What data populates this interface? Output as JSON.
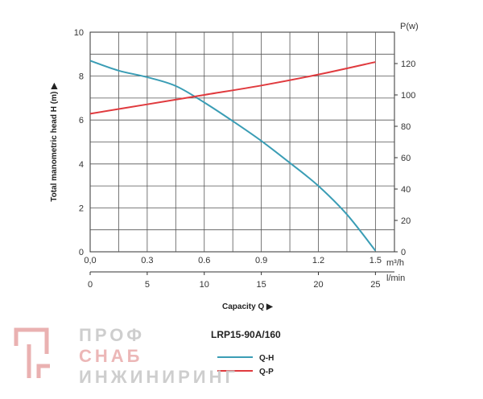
{
  "chart_data": {
    "type": "line",
    "model": "LRP15-90A/160",
    "ylabel": "Total manometric head H (m) ▶",
    "xlabel": "Capacity Q ▶",
    "y_right_unit": "P(w)",
    "x_unit_top": "m³/h",
    "x_unit_bottom": "l/min",
    "x_ticks_top": [
      "0,0",
      "0.3",
      "0.6",
      "0.9",
      "1.2",
      "1.5"
    ],
    "x_ticks_bottom": [
      "0",
      "5",
      "10",
      "15",
      "20",
      "25"
    ],
    "y_ticks_left": [
      "0",
      "2",
      "4",
      "6",
      "8",
      "10"
    ],
    "y_ticks_right": [
      "0",
      "20",
      "40",
      "60",
      "80",
      "100",
      "120"
    ],
    "xlim": [
      0,
      1.6
    ],
    "ylim_left": [
      0,
      10
    ],
    "ylim_right": [
      0,
      140
    ],
    "grid": true,
    "series": [
      {
        "name": "Q-H",
        "color": "#3a9db5",
        "axis": "left",
        "x": [
          0,
          0.15,
          0.3,
          0.45,
          0.6,
          0.75,
          0.9,
          1.05,
          1.2,
          1.35,
          1.5
        ],
        "y": [
          8.7,
          8.25,
          7.95,
          7.55,
          6.8,
          5.95,
          5.05,
          4.05,
          3.0,
          1.7,
          0.05
        ]
      },
      {
        "name": "Q-P",
        "color": "#e03a3e",
        "axis": "right",
        "x": [
          0,
          0.3,
          0.6,
          0.9,
          1.2,
          1.5
        ],
        "y": [
          88,
          94,
          100,
          106,
          113,
          121
        ]
      }
    ]
  },
  "watermark": {
    "line1": "ПРОФ",
    "line2": "СНАБ",
    "line3": "ИНЖИНИРИНГ"
  }
}
